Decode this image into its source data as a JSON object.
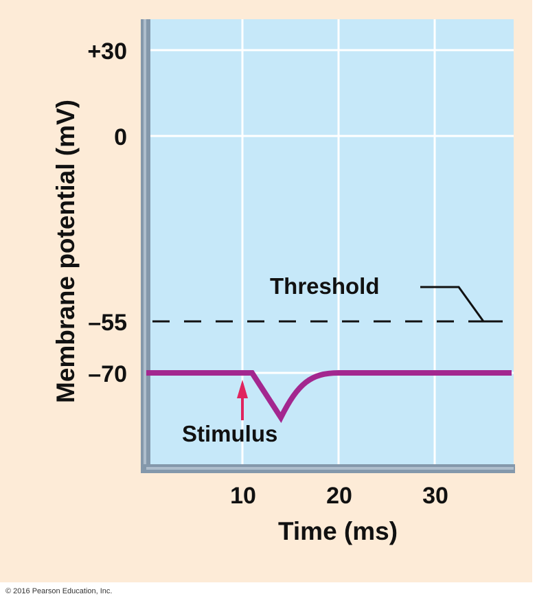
{
  "chart_data": {
    "type": "line",
    "title": "",
    "xlabel": "Time (ms)",
    "ylabel": "Membrane potential (mV)",
    "x_ticks": [
      10,
      20,
      30
    ],
    "y_ticks": [
      {
        "value": 30,
        "label": "+30"
      },
      {
        "value": 0,
        "label": "0"
      },
      {
        "value": -55,
        "label": "–55"
      },
      {
        "value": -70,
        "label": "–70"
      }
    ],
    "xlim": [
      0,
      38
    ],
    "grid": true,
    "series": [
      {
        "x": [
          0,
          11,
          14,
          16,
          18,
          20,
          38
        ],
        "y": [
          -70,
          -70,
          -83,
          -77,
          -72.5,
          -70,
          -70
        ],
        "color": "#a3278f"
      }
    ],
    "threshold": {
      "value": -55,
      "label": "Threshold",
      "style": "dashed"
    },
    "annotations": [
      {
        "label": "Stimulus",
        "x": 10,
        "color": "#e0245e"
      }
    ],
    "colors": {
      "plot_background": "#c6e8f9",
      "page_background": "#fdebd7",
      "axis": "#7f95a8"
    }
  },
  "copyright": "© 2016 Pearson Education, Inc."
}
